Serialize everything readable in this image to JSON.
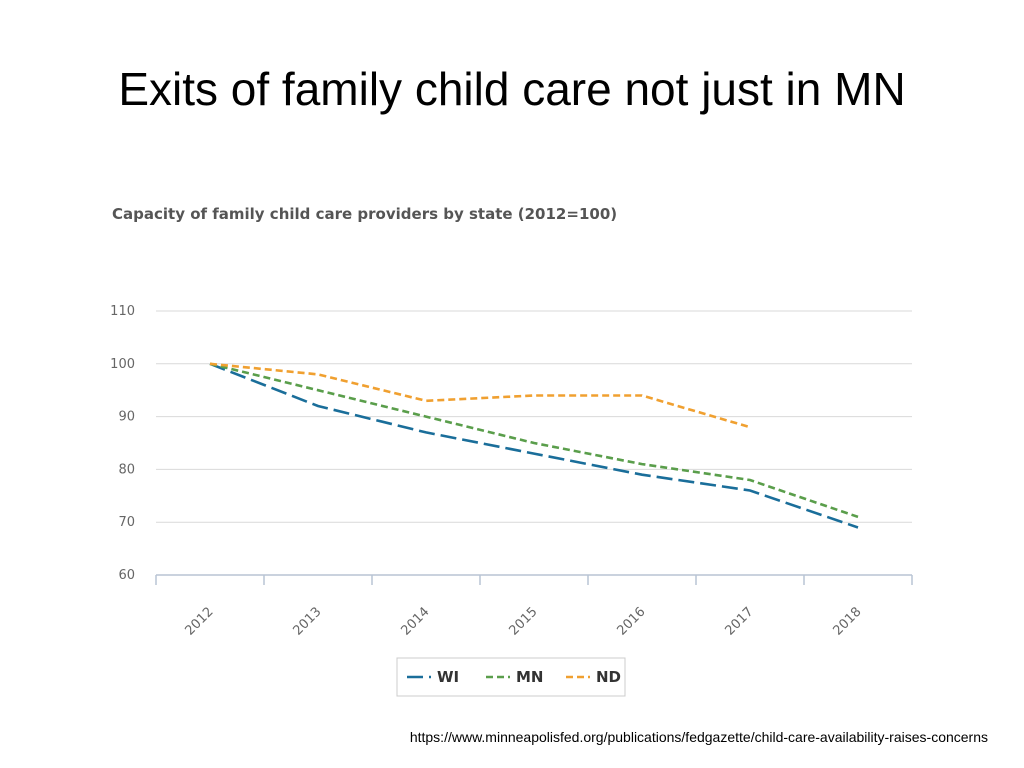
{
  "slide": {
    "title": "Exits of family child care not just in MN",
    "source": "https://www.minneapolisfed.org/publications/fedgazette/child-care-availability-raises-concerns"
  },
  "chart_data": {
    "type": "line",
    "title": "Capacity of family child care providers by state (2012=100)",
    "xlabel": "",
    "ylabel": "",
    "categories": [
      "2012",
      "2013",
      "2014",
      "2015",
      "2016",
      "2017",
      "2018"
    ],
    "ylim": [
      60,
      110
    ],
    "yticks": [
      60,
      70,
      80,
      90,
      100,
      110
    ],
    "grid": true,
    "legend_position": "bottom",
    "series": [
      {
        "name": "WI",
        "color": "#1a6e9a",
        "dash": "long-dash",
        "values": [
          100,
          92,
          87,
          83,
          79,
          76,
          69
        ]
      },
      {
        "name": "MN",
        "color": "#5a9e4b",
        "dash": "short-dash",
        "values": [
          100,
          95,
          90,
          85,
          81,
          78,
          71
        ]
      },
      {
        "name": "ND",
        "color": "#f0a030",
        "dash": "short-dash",
        "values": [
          100,
          98,
          93,
          94,
          94,
          88,
          null
        ]
      }
    ]
  }
}
